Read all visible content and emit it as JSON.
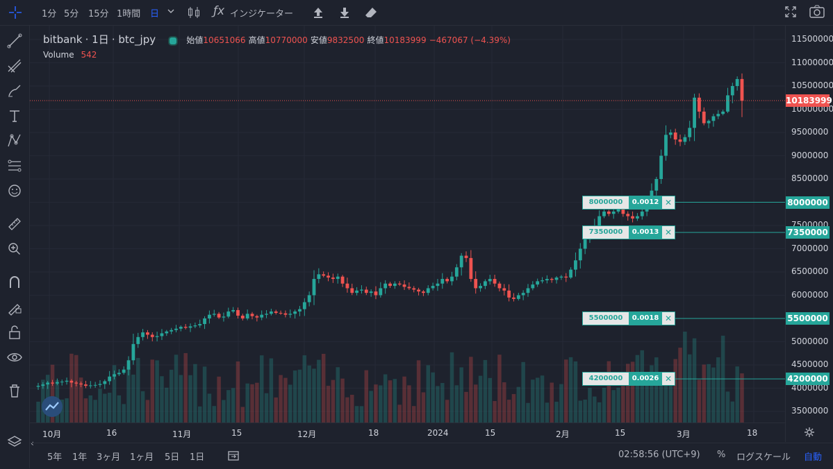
{
  "toolbar": {
    "intervals": [
      "1分",
      "5分",
      "15分",
      "1時間",
      "日"
    ],
    "active_interval": "日",
    "indicators_label": "インジケーター"
  },
  "legend": {
    "exchange": "bitbank",
    "interval": "1日",
    "symbol": "btc_jpy",
    "open_label": "始値",
    "open_value": "10651066",
    "high_label": "高値",
    "high_value": "10770000",
    "low_label": "安値",
    "low_value": "9832500",
    "close_label": "終値",
    "close_value": "10183999",
    "change": "−467067 (−4.39%)",
    "volume_label": "Volume",
    "volume_value": "542"
  },
  "price_axis": {
    "ticks": [
      "11500000",
      "11000000",
      "10500000",
      "10000000",
      "9500000",
      "9000000",
      "8500000",
      "8000000",
      "7500000",
      "7000000",
      "6500000",
      "6000000",
      "5500000",
      "5000000",
      "4500000",
      "4000000",
      "3500000"
    ],
    "current_price": "10183999"
  },
  "orders": [
    {
      "price": "8000000",
      "qty": "0.0012"
    },
    {
      "price": "7350000",
      "qty": "0.0013"
    },
    {
      "price": "5500000",
      "qty": "0.0018"
    },
    {
      "price": "4200000",
      "qty": "0.0026"
    }
  ],
  "time_axis": [
    "10月",
    "16",
    "11月",
    "15",
    "12月",
    "18",
    "2024",
    "15",
    "2月",
    "15",
    "3月",
    "18"
  ],
  "bottom": {
    "ranges": [
      "5年",
      "1年",
      "3ヶ月",
      "1ヶ月",
      "5日",
      "1日"
    ],
    "clock": "02:58:56 (UTC+9)",
    "percent": "%",
    "log": "ログスケール",
    "auto": "自動"
  },
  "colors": {
    "up": "#26a69a",
    "down": "#ef5350",
    "background": "#1e222d",
    "accent": "#2962ff"
  },
  "chart_data": {
    "type": "candlestick",
    "symbol": "btc_jpy",
    "interval": "1日",
    "ylim": [
      3300000,
      11700000
    ],
    "x_labels": [
      "10月",
      "16",
      "11月",
      "15",
      "12月",
      "18",
      "2024",
      "15",
      "2月",
      "15",
      "3月",
      "18"
    ],
    "closes": [
      4050000,
      4080000,
      4120000,
      4100000,
      4130000,
      4140000,
      4160000,
      4120000,
      4100000,
      4080000,
      4050000,
      4060000,
      4070000,
      4090000,
      4150000,
      4250000,
      4300000,
      4330000,
      4400000,
      4600000,
      4950000,
      5100000,
      5200000,
      5150000,
      5100000,
      5120000,
      5180000,
      5220000,
      5250000,
      5280000,
      5320000,
      5300000,
      5330000,
      5350000,
      5380000,
      5500000,
      5580000,
      5600000,
      5520000,
      5540000,
      5650000,
      5680000,
      5560000,
      5500000,
      5600000,
      5550000,
      5520000,
      5580000,
      5600000,
      5650000,
      5620000,
      5610000,
      5580000,
      5600000,
      5650000,
      5700000,
      5850000,
      6000000,
      6350000,
      6450000,
      6420000,
      6380000,
      6350000,
      6400000,
      6250000,
      6150000,
      6050000,
      6100000,
      6120000,
      6050000,
      6080000,
      6000000,
      6150000,
      6250000,
      6200000,
      6250000,
      6230000,
      6180000,
      6150000,
      6120000,
      6080000,
      6050000,
      6150000,
      6200000,
      6250000,
      6350000,
      6300000,
      6400000,
      6600000,
      6850000,
      6800000,
      6350000,
      6150000,
      6200000,
      6300000,
      6350000,
      6250000,
      6150000,
      6100000,
      5950000,
      5920000,
      6000000,
      6050000,
      6150000,
      6230000,
      6300000,
      6320000,
      6350000,
      6330000,
      6380000,
      6400000,
      6380000,
      6550000,
      6750000,
      7000000,
      7200000,
      7350000,
      7500000,
      7700000,
      7800000,
      7750000,
      7800000,
      7850000,
      7750000,
      7700000,
      7650000,
      7700000,
      7800000,
      8000000,
      8250000,
      8500000,
      9000000,
      9450000,
      9500000,
      9350000,
      9300000,
      9400000,
      9600000,
      10250000,
      9950000,
      9700000,
      9750000,
      9850000,
      9900000,
      9950000,
      10300000,
      10500000,
      10650000,
      10183999
    ],
    "last": {
      "open": 10651066,
      "high": 10770000,
      "low": 9832500,
      "close": 10183999
    }
  }
}
